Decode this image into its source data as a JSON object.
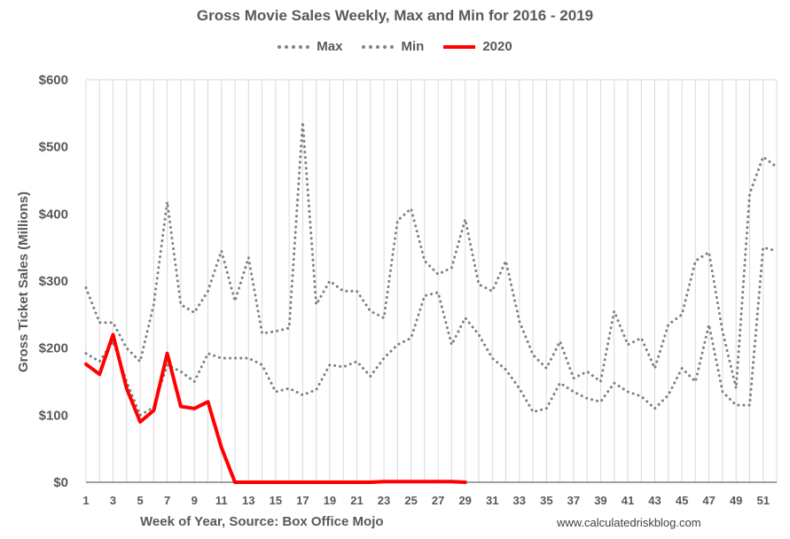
{
  "chart_data": {
    "type": "line",
    "title": "Gross Movie Sales Weekly, Max and Min for 2016 - 2019",
    "xlabel": "Week of Year, Source: Box Office Mojo",
    "ylabel": "Gross Ticket Sales (Millions)",
    "source": "www.calculatedriskblog.com",
    "ylim": [
      0,
      600
    ],
    "xlim": [
      1,
      52
    ],
    "yticks": [
      "$0",
      "$100",
      "$200",
      "$300",
      "$400",
      "$500",
      "$600"
    ],
    "xticks": [
      "1",
      "3",
      "5",
      "7",
      "9",
      "11",
      "13",
      "15",
      "17",
      "19",
      "21",
      "23",
      "25",
      "27",
      "29",
      "31",
      "33",
      "35",
      "37",
      "39",
      "41",
      "43",
      "45",
      "47",
      "49",
      "51"
    ],
    "grid": "vertical",
    "legend_position": "top",
    "series": [
      {
        "name": "Max",
        "color": "#808080",
        "style": "dotted",
        "x": [
          1,
          2,
          3,
          4,
          5,
          6,
          7,
          8,
          9,
          10,
          11,
          12,
          13,
          14,
          15,
          16,
          17,
          18,
          19,
          20,
          21,
          22,
          23,
          24,
          25,
          26,
          27,
          28,
          29,
          30,
          31,
          32,
          33,
          34,
          35,
          36,
          37,
          38,
          39,
          40,
          41,
          42,
          43,
          44,
          45,
          46,
          47,
          48,
          49,
          50,
          51,
          52
        ],
        "values": [
          290,
          238,
          238,
          200,
          180,
          265,
          418,
          265,
          253,
          285,
          345,
          270,
          335,
          222,
          225,
          230,
          537,
          265,
          300,
          285,
          285,
          255,
          245,
          390,
          408,
          330,
          310,
          320,
          392,
          295,
          285,
          330,
          240,
          190,
          170,
          210,
          155,
          165,
          150,
          255,
          205,
          215,
          170,
          235,
          250,
          330,
          343,
          225,
          140,
          430,
          485,
          470
        ]
      },
      {
        "name": "Min",
        "color": "#808080",
        "style": "dotted",
        "x": [
          1,
          2,
          3,
          4,
          5,
          6,
          7,
          8,
          9,
          10,
          11,
          12,
          13,
          14,
          15,
          16,
          17,
          18,
          19,
          20,
          21,
          22,
          23,
          24,
          25,
          26,
          27,
          28,
          29,
          30,
          31,
          32,
          33,
          34,
          35,
          36,
          37,
          38,
          39,
          40,
          41,
          42,
          43,
          44,
          45,
          46,
          47,
          48,
          49,
          50,
          51,
          52
        ],
        "values": [
          192,
          180,
          210,
          150,
          100,
          112,
          175,
          165,
          150,
          192,
          185,
          185,
          185,
          175,
          135,
          140,
          130,
          138,
          175,
          172,
          180,
          158,
          185,
          205,
          215,
          278,
          283,
          205,
          245,
          220,
          185,
          168,
          140,
          105,
          110,
          148,
          135,
          125,
          120,
          148,
          135,
          128,
          110,
          130,
          170,
          150,
          235,
          135,
          115,
          115,
          350,
          345
        ]
      },
      {
        "name": "2020",
        "color": "#ff0000",
        "style": "solid",
        "x": [
          1,
          2,
          3,
          4,
          5,
          6,
          7,
          8,
          9,
          10,
          11,
          12,
          13,
          14,
          15,
          16,
          17,
          18,
          19,
          20,
          21,
          22,
          23,
          24,
          25,
          26,
          27,
          28,
          29
        ],
        "values": [
          176,
          161,
          220,
          140,
          90,
          107,
          192,
          113,
          110,
          120,
          52,
          0,
          0,
          0,
          0,
          0,
          0,
          0,
          0,
          0,
          0,
          0,
          1,
          1,
          1,
          1,
          1,
          1,
          0
        ]
      }
    ]
  }
}
